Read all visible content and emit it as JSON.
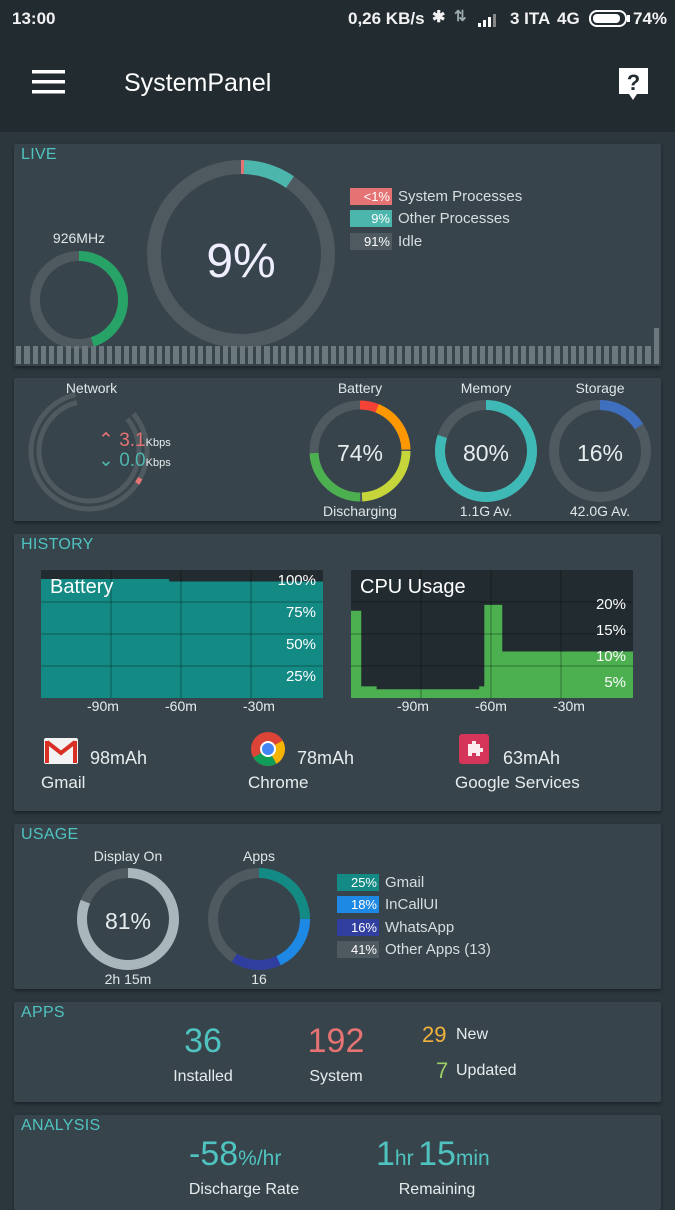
{
  "status": {
    "time": "13:00",
    "speed": "0,26 KB/s",
    "carrier": "3 ITA",
    "net": "4G",
    "battery": "74%"
  },
  "appbar": {
    "title": "SystemPanel",
    "menu_icon": "hamburger-icon",
    "help_icon": "help-icon"
  },
  "live": {
    "section": "LIVE",
    "freq": "926MHz",
    "freq_level": 0.45,
    "cpu_percent": "9%",
    "legend": [
      {
        "value": "<1%",
        "label": "System Processes",
        "color": "#e57373"
      },
      {
        "value": "9%",
        "label": "Other Processes",
        "color": "#4db6ac"
      },
      {
        "value": "91%",
        "label": "Idle",
        "color": "#4e5a60"
      }
    ],
    "bar_values": [
      0.5,
      0.5,
      0.5,
      0.5,
      0.5,
      0.5,
      0.5,
      0.5,
      0.5,
      0.5,
      0.5,
      0.5,
      0.5,
      0.5,
      0.5,
      0.5,
      0.5,
      0.5,
      0.5,
      0.5,
      0.5,
      0.5,
      0.5,
      0.5,
      0.5,
      0.5,
      0.5,
      0.5,
      0.5,
      0.5,
      0.5,
      0.5,
      0.5,
      0.5,
      0.5,
      0.5,
      0.5,
      0.5,
      0.5,
      0.5,
      0.5,
      0.5,
      0.5,
      0.5,
      0.5,
      0.5,
      0.5,
      0.5,
      0.5,
      0.5,
      0.5,
      0.5,
      0.5,
      0.5,
      0.5,
      0.5,
      0.5,
      0.5,
      0.5,
      0.5,
      0.5,
      0.5,
      0.5,
      0.5,
      0.5,
      0.5,
      0.5,
      0.5,
      0.5,
      0.5,
      0.5,
      0.5,
      0.5,
      0.5,
      0.5,
      0.5,
      0.5,
      1
    ]
  },
  "resources": {
    "network": {
      "label": "Network",
      "up": "3.1",
      "down": "0.0",
      "unit": "Kbps"
    },
    "battery": {
      "label": "Battery",
      "value": "74%",
      "status": "Discharging"
    },
    "memory": {
      "label": "Memory",
      "value": "80%",
      "available": "1.1G Av.",
      "level": 0.8
    },
    "storage": {
      "label": "Storage",
      "value": "16%",
      "available": "42.0G Av.",
      "level": 0.16
    }
  },
  "history": {
    "section": "HISTORY",
    "battery_chart": {
      "title": "Battery",
      "yticks": [
        "100%",
        "75%",
        "50%",
        "25%"
      ],
      "xticks": [
        "-90m",
        "-60m",
        "-30m"
      ]
    },
    "cpu_chart": {
      "title": "CPU Usage",
      "yticks": [
        "20%",
        "15%",
        "10%",
        "5%"
      ],
      "xticks": [
        "-90m",
        "-60m",
        "-30m"
      ]
    },
    "apps": [
      {
        "name": "Gmail",
        "usage": "98mAh",
        "icon": "gmail-icon"
      },
      {
        "name": "Chrome",
        "usage": "78mAh",
        "icon": "chrome-icon"
      },
      {
        "name": "Google Services",
        "usage": "63mAh",
        "icon": "google-services-icon"
      }
    ]
  },
  "chart_data": [
    {
      "type": "area",
      "title": "Battery",
      "x": [
        -110,
        -60,
        0
      ],
      "values": [
        93,
        91,
        91
      ],
      "xlabel": "",
      "ylabel": "",
      "yticks": [
        "25%",
        "50%",
        "75%",
        "100%"
      ],
      "xticks": [
        "-90m",
        "-60m",
        "-30m"
      ],
      "ylim": [
        0,
        100
      ]
    },
    {
      "type": "area",
      "title": "CPU Usage",
      "x": [
        -110,
        -106,
        -100,
        -60,
        -58,
        -51,
        0
      ],
      "values": [
        15,
        2,
        1.5,
        2,
        16,
        8,
        8
      ],
      "xlabel": "",
      "ylabel": "",
      "yticks": [
        "5%",
        "10%",
        "15%",
        "20%"
      ],
      "xticks": [
        "-90m",
        "-60m",
        "-30m"
      ],
      "ylim": [
        0,
        22
      ]
    }
  ],
  "usage": {
    "section": "USAGE",
    "display_label": "Display On",
    "display_value": "81%",
    "display_level": 0.81,
    "display_time": "2h 15m",
    "apps_label": "Apps",
    "apps_count": "16",
    "legend": [
      {
        "value": "25%",
        "label": "Gmail",
        "color": "#138a83"
      },
      {
        "value": "18%",
        "label": "InCallUI",
        "color": "#1e88e5"
      },
      {
        "value": "16%",
        "label": "WhatsApp",
        "color": "#303f9f"
      },
      {
        "value": "41%",
        "label": "Other Apps (13)",
        "color": "#4e5a60"
      }
    ]
  },
  "apps": {
    "section": "APPS",
    "installed": "36",
    "installed_label": "Installed",
    "system": "192",
    "system_label": "System",
    "new": "29",
    "new_label": "New",
    "updated": "7",
    "updated_label": "Updated"
  },
  "analysis": {
    "section": "ANALYSIS",
    "rate": "-58",
    "rate_unit": "%/hr",
    "rate_label": "Discharge Rate",
    "hours": "1",
    "hours_unit": "hr",
    "mins": "15",
    "mins_unit": "min",
    "remaining_label": "Remaining"
  }
}
